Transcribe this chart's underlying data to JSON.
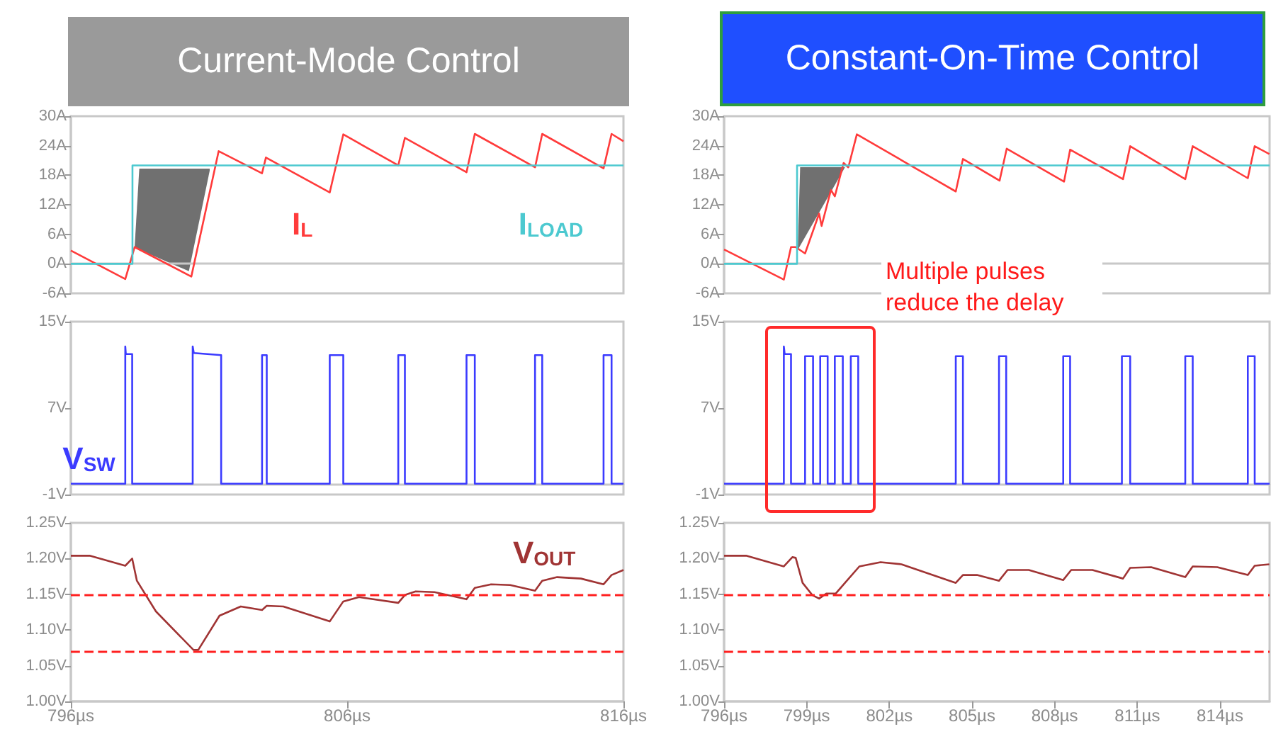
{
  "chart_data": [
    {
      "type": "line",
      "title": "Current-Mode Control",
      "xlim": [
        796,
        816
      ],
      "ylim": [
        -6,
        30
      ],
      "yticks": [
        {
          "value": -6,
          "label": "-6A"
        },
        {
          "value": 0,
          "label": "0A"
        },
        {
          "value": 6,
          "label": "6A"
        },
        {
          "value": 12,
          "label": "12A"
        },
        {
          "value": 18,
          "label": "18A"
        },
        {
          "value": 24,
          "label": "24A"
        },
        {
          "value": 30,
          "label": "30A"
        }
      ],
      "tick_labels": "y",
      "marker": "none",
      "series": [
        {
          "name": "I$_{L}$",
          "color": "#ff3b3b",
          "x": [
            796,
            797.97,
            798.31,
            800.36,
            801.35,
            802.92,
            803.06,
            805.37,
            805.86,
            807.85,
            808.09,
            810.32,
            810.62,
            812.8,
            813.06,
            815.28,
            815.57,
            816
          ],
          "values": [
            2.7,
            -3.1,
            3.4,
            -2.6,
            22.9,
            18.4,
            21.6,
            14.5,
            26.3,
            20,
            25.6,
            18.6,
            26.4,
            19.6,
            26.4,
            19.4,
            26.4,
            24.9
          ]
        },
        {
          "name": "I$_{LOAD}$",
          "color": "#4cc9d0",
          "x": [
            796,
            798.23,
            798.23,
            816
          ],
          "values": [
            0,
            0,
            20,
            20
          ]
        }
      ]
    },
    {
      "type": "line",
      "title": "Constant-On-Time Control",
      "xlim": [
        796,
        815.8
      ],
      "ylim": [
        -6,
        30
      ],
      "yticks": [
        {
          "value": -6,
          "label": "-6A"
        },
        {
          "value": 0,
          "label": "0A"
        },
        {
          "value": 6,
          "label": "6A"
        },
        {
          "value": 12,
          "label": "12A"
        },
        {
          "value": 18,
          "label": "18A"
        },
        {
          "value": 24,
          "label": "24A"
        },
        {
          "value": 30,
          "label": "30A"
        }
      ],
      "tick_labels": "y",
      "marker": "none",
      "series": [
        {
          "color": "#ff3b3b",
          "x": [
            796,
            798.17,
            798.43,
            798.6,
            798.94,
            799.45,
            799.54,
            799.88,
            800.02,
            800.34,
            800.51,
            800.82,
            804.41,
            804.67,
            806,
            806.26,
            808.34,
            808.56,
            810.48,
            810.74,
            812.74,
            813.01,
            815.01,
            815.26,
            815.79
          ],
          "values": [
            2.9,
            -3.2,
            3.4,
            3.4,
            2.1,
            10.2,
            7.7,
            15,
            13.7,
            20.5,
            19.6,
            26.3,
            14.7,
            21.3,
            16.9,
            23.4,
            16.7,
            23.2,
            17.2,
            23.9,
            17.2,
            23.9,
            17.4,
            23.9,
            22.3
          ]
        },
        {
          "color": "#4cc9d0",
          "x": [
            796,
            798.65,
            798.65,
            815.8
          ],
          "values": [
            0,
            0,
            20,
            20
          ]
        }
      ]
    },
    {
      "type": "line",
      "xlim": [
        796,
        816
      ],
      "ylim": [
        -1,
        15
      ],
      "yticks": [
        {
          "value": -1,
          "label": "-1V"
        },
        {
          "value": 7,
          "label": "7V"
        },
        {
          "value": 15,
          "label": "15V"
        }
      ],
      "tick_labels": "y",
      "marker": "none",
      "series": [
        {
          "name": "V$_{SW}$",
          "color": "#3b3bff",
          "x": [
            796,
            797.97,
            797.97,
            797.99,
            798.22,
            798.22,
            800.41,
            800.41,
            800.45,
            801.44,
            801.44,
            802.92,
            802.92,
            803.09,
            803.09,
            805.37,
            805.37,
            805.86,
            805.86,
            807.85,
            807.85,
            808.09,
            808.09,
            810.32,
            810.32,
            810.62,
            810.62,
            812.8,
            812.8,
            813.06,
            813.06,
            815.28,
            815.28,
            815.57,
            815.57,
            816
          ],
          "values": [
            0,
            0,
            12.7,
            12,
            12,
            0,
            0,
            12.7,
            12.1,
            11.9,
            0,
            0,
            11.9,
            11.9,
            0,
            0,
            11.9,
            11.9,
            0,
            0,
            11.9,
            11.9,
            0,
            0,
            11.9,
            11.9,
            0,
            0,
            11.9,
            11.9,
            0,
            0,
            11.9,
            11.9,
            0,
            0
          ]
        }
      ]
    },
    {
      "type": "line",
      "xlim": [
        796,
        815.8
      ],
      "ylim": [
        -1,
        15
      ],
      "yticks": [
        {
          "value": -1,
          "label": "-1V"
        },
        {
          "value": 7,
          "label": "7V"
        },
        {
          "value": 15,
          "label": "15V"
        }
      ],
      "tick_labels": "y",
      "marker": "none",
      "annotations": [
        "Multiple pulses reduce the delay"
      ],
      "series": [
        {
          "color": "#3b3bff",
          "x": [
            796,
            798.17,
            798.17,
            798.2,
            798.43,
            798.43,
            798.94,
            798.94,
            799.23,
            799.23,
            799.49,
            799.49,
            799.76,
            799.76,
            800.02,
            800.02,
            800.31,
            800.31,
            800.6,
            800.6,
            800.87,
            800.87,
            804.41,
            804.41,
            804.67,
            804.67,
            805.98,
            805.98,
            806.24,
            806.24,
            808.31,
            808.31,
            808.56,
            808.56,
            810.44,
            810.44,
            810.74,
            810.74,
            812.74,
            812.74,
            813.01,
            813.01,
            815.01,
            815.01,
            815.26,
            815.26,
            815.8
          ],
          "values": [
            0,
            0,
            12.7,
            12,
            12,
            0,
            0,
            11.8,
            11.8,
            0,
            0,
            11.8,
            11.8,
            0,
            0,
            11.8,
            11.8,
            0,
            0,
            11.8,
            11.8,
            0,
            0,
            11.8,
            11.8,
            0,
            0,
            11.8,
            11.8,
            0,
            0,
            11.8,
            11.8,
            0,
            0,
            11.8,
            11.8,
            0,
            0,
            11.8,
            11.8,
            0,
            0,
            11.8,
            11.8,
            0,
            0
          ]
        }
      ]
    },
    {
      "type": "line",
      "xlim": [
        796,
        816
      ],
      "ylim": [
        1.0,
        1.25
      ],
      "xticks": [
        {
          "value": 796,
          "label": "796µs"
        },
        {
          "value": 806,
          "label": "806µs"
        },
        {
          "value": 816,
          "label": "816µs"
        }
      ],
      "yticks": [
        {
          "value": 1.0,
          "label": "1.00V"
        },
        {
          "value": 1.05,
          "label": "1.05V"
        },
        {
          "value": 1.1,
          "label": "1.10V"
        },
        {
          "value": 1.15,
          "label": "1.15V"
        },
        {
          "value": 1.2,
          "label": "1.20V"
        },
        {
          "value": 1.25,
          "label": "1.25V"
        }
      ],
      "marker": "none",
      "ref_lines": [
        {
          "axis": "y",
          "value": 1.147,
          "color": "#ff2020",
          "line_style": "dashed"
        },
        {
          "axis": "y",
          "value": 1.072,
          "color": "#ff2020",
          "line_style": "dashed"
        }
      ],
      "series": [
        {
          "name": "V$_{OUT}$",
          "color": "#a03434",
          "x": [
            796,
            796.68,
            797.97,
            798.22,
            798.39,
            799.08,
            800.44,
            800.61,
            801.38,
            802.15,
            802.92,
            803.09,
            803.69,
            805.37,
            805.86,
            806.43,
            807.85,
            808.09,
            808.48,
            809.16,
            810.32,
            810.62,
            811.21,
            811.9,
            812.8,
            813.06,
            813.6,
            814.46,
            815.28,
            815.57,
            816
          ],
          "values": [
            1.204,
            1.204,
            1.19,
            1.2,
            1.169,
            1.126,
            1.072,
            1.072,
            1.12,
            1.133,
            1.128,
            1.134,
            1.133,
            1.112,
            1.14,
            1.146,
            1.138,
            1.149,
            1.154,
            1.153,
            1.143,
            1.159,
            1.164,
            1.163,
            1.155,
            1.169,
            1.174,
            1.172,
            1.164,
            1.177,
            1.184
          ]
        }
      ]
    },
    {
      "type": "line",
      "xlim": [
        796,
        815.8
      ],
      "ylim": [
        1.0,
        1.25
      ],
      "xticks": [
        {
          "value": 796,
          "label": "796µs"
        },
        {
          "value": 799,
          "label": "799µs"
        },
        {
          "value": 802,
          "label": "802µs"
        },
        {
          "value": 805,
          "label": "805µs"
        },
        {
          "value": 808,
          "label": "808µs"
        },
        {
          "value": 811,
          "label": "811µs"
        },
        {
          "value": 814,
          "label": "814µs"
        }
      ],
      "yticks": [
        {
          "value": 1.0,
          "label": "1.00V"
        },
        {
          "value": 1.05,
          "label": "1.05V"
        },
        {
          "value": 1.1,
          "label": "1.10V"
        },
        {
          "value": 1.15,
          "label": "1.15V"
        },
        {
          "value": 1.2,
          "label": "1.20V"
        },
        {
          "value": 1.25,
          "label": "1.25V"
        }
      ],
      "marker": "none",
      "ref_lines": [
        {
          "axis": "y",
          "value": 1.147,
          "color": "#ff2020",
          "line_style": "dashed"
        },
        {
          "axis": "y",
          "value": 1.072,
          "color": "#ff2020",
          "line_style": "dashed"
        }
      ],
      "series": [
        {
          "color": "#a03434",
          "x": [
            796,
            796.8,
            798.17,
            798.48,
            798.6,
            798.85,
            799.2,
            799.45,
            799.71,
            800.05,
            800.39,
            800.91,
            801.68,
            802.44,
            804.41,
            804.67,
            805.18,
            805.98,
            806.29,
            807.06,
            808.31,
            808.6,
            809.37,
            810.48,
            810.74,
            811.5,
            812.74,
            813.01,
            813.9,
            815.01,
            815.26,
            815.79
          ],
          "values": [
            1.204,
            1.204,
            1.189,
            1.202,
            1.201,
            1.166,
            1.149,
            1.144,
            1.151,
            1.151,
            1.166,
            1.189,
            1.195,
            1.192,
            1.166,
            1.177,
            1.177,
            1.169,
            1.184,
            1.184,
            1.17,
            1.184,
            1.184,
            1.172,
            1.187,
            1.188,
            1.174,
            1.189,
            1.188,
            1.177,
            1.19,
            1.192
          ]
        }
      ]
    }
  ]
}
